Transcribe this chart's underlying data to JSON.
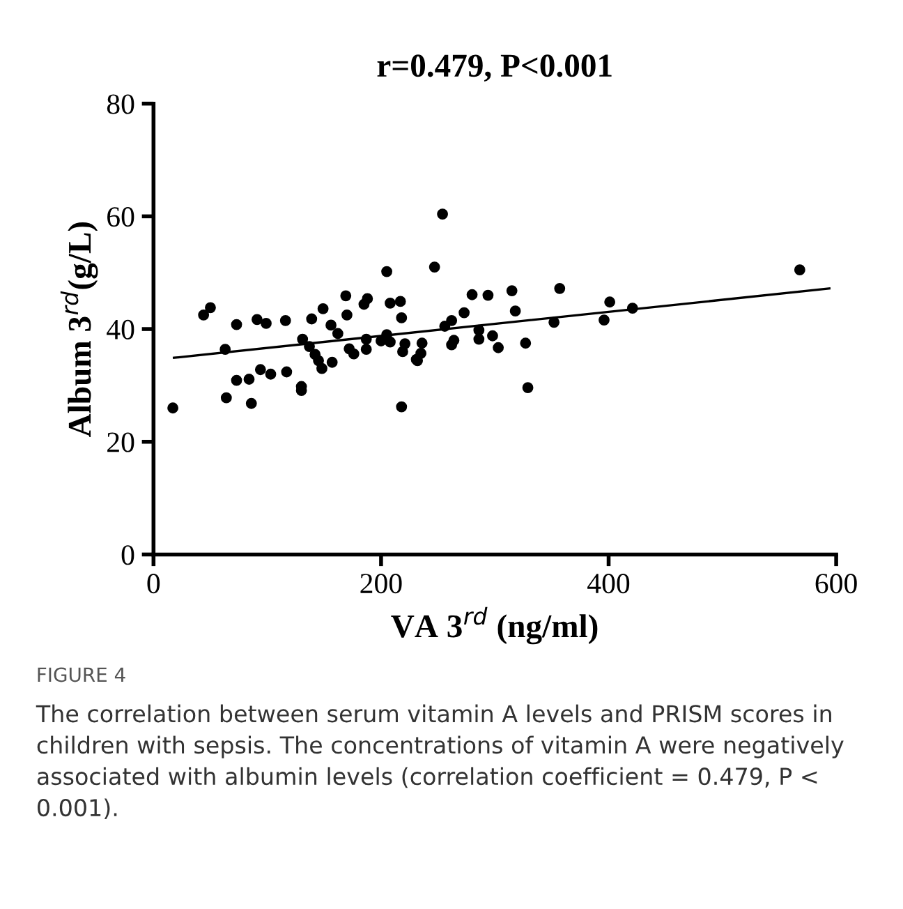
{
  "chart_data": {
    "type": "scatter",
    "title": "r=0.479, P<0.001",
    "xlabel": "VA 3$^{rd}$ (ng/ml)",
    "ylabel": "Album 3$^{rd}$(g/L)",
    "xlim": [
      0,
      600
    ],
    "xticks": [
      0,
      200,
      400,
      600
    ],
    "ylim": [
      0,
      80
    ],
    "yticks": [
      0,
      20,
      40,
      60,
      80
    ],
    "grid": false,
    "legend": false,
    "series": [
      {
        "marker": "circle",
        "color": "#000000",
        "x": [
          17,
          44,
          50,
          63,
          64,
          73,
          73,
          84,
          86,
          91,
          94,
          99,
          103,
          116,
          117,
          130,
          130,
          131,
          137,
          139,
          142,
          145,
          148,
          149,
          156,
          157,
          162,
          169,
          170,
          172,
          176,
          185,
          188,
          187,
          187,
          200,
          205,
          205,
          208,
          208,
          217,
          218,
          221,
          219,
          218,
          231,
          254,
          247,
          236,
          235,
          232,
          262,
          256,
          264,
          262,
          273,
          280,
          286,
          286,
          294,
          298,
          303,
          315,
          318,
          327,
          329,
          352,
          357,
          396,
          401,
          421,
          568
        ],
        "values": [
          26.0,
          42.5,
          43.8,
          36.4,
          27.8,
          30.9,
          40.8,
          31.1,
          26.8,
          41.7,
          32.8,
          41.0,
          32.0,
          41.5,
          32.4,
          29.8,
          29.1,
          38.2,
          36.9,
          41.8,
          35.5,
          34.4,
          33.0,
          43.6,
          40.7,
          34.1,
          39.2,
          45.9,
          42.5,
          36.5,
          35.6,
          44.4,
          45.4,
          38.2,
          36.4,
          37.9,
          50.2,
          39.0,
          37.7,
          44.6,
          44.9,
          42.0,
          37.4,
          36.0,
          26.2,
          34.6,
          60.4,
          51.0,
          37.5,
          35.7,
          34.4,
          41.5,
          40.5,
          38.0,
          37.2,
          42.9,
          46.1,
          39.8,
          38.2,
          46.0,
          38.8,
          36.7,
          46.8,
          43.2,
          37.5,
          29.6,
          41.2,
          47.2,
          41.6,
          44.8,
          43.7,
          50.5
        ]
      },
      {
        "type": "line",
        "color": "#000000",
        "x": [
          18,
          594
        ],
        "values": [
          34.9,
          47.2
        ]
      }
    ],
    "annotations": [
      "FIGURE 4",
      "The correlation between serum vitamin A levels and PRISM scores in children with sepsis. The concentrations of vitamin A were negatively associated with albumin levels (correlation coefficient = 0.479, P < 0.001)."
    ]
  }
}
